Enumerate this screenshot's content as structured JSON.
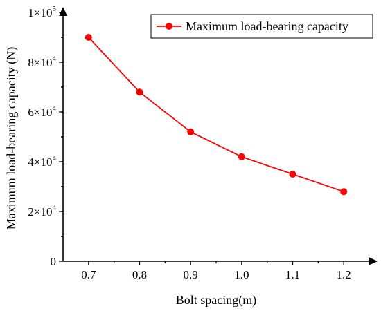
{
  "chart_data": {
    "type": "line",
    "title": "",
    "xlabel": "Bolt spacing(m)",
    "ylabel": "Maximum load-bearing capacity (N)",
    "x": [
      0.7,
      0.8,
      0.9,
      1.0,
      1.1,
      1.2
    ],
    "x_tick_labels": [
      "0.7",
      "0.8",
      "0.9",
      "1.0",
      "1.1",
      "1.2"
    ],
    "xlim": [
      0.65,
      1.25
    ],
    "ylim": [
      0,
      100000
    ],
    "y_ticks": [
      {
        "value": 0,
        "base": "0",
        "exp": ""
      },
      {
        "value": 20000,
        "base": "2×10",
        "exp": "4"
      },
      {
        "value": 40000,
        "base": "4×10",
        "exp": "4"
      },
      {
        "value": 60000,
        "base": "6×10",
        "exp": "4"
      },
      {
        "value": 80000,
        "base": "8×10",
        "exp": "4"
      },
      {
        "value": 100000,
        "base": "1×10",
        "exp": "5"
      }
    ],
    "series": [
      {
        "name": "Maximum load-bearing capacity",
        "color": "#ff0000",
        "marker": "circle",
        "values": [
          90000,
          68000,
          52000,
          42000,
          35000,
          28000
        ]
      }
    ],
    "legend_position": "top-right",
    "grid": false
  }
}
